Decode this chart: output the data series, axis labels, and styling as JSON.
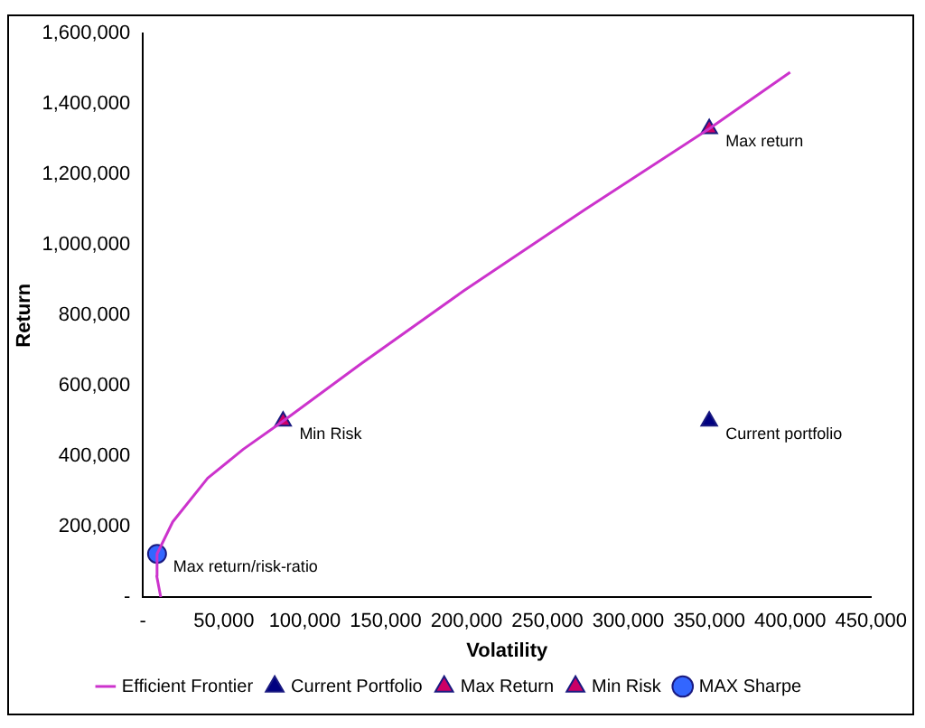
{
  "chart_data": {
    "type": "scatter",
    "xlabel": "Volatility",
    "ylabel": "Return",
    "xlim": [
      0,
      450000
    ],
    "xticks": [
      {
        "value": 0,
        "label": "-"
      },
      {
        "value": 50000,
        "label": "50,000"
      },
      {
        "value": 100000,
        "label": "100,000"
      },
      {
        "value": 150000,
        "label": "150,000"
      },
      {
        "value": 200000,
        "label": "200,000"
      },
      {
        "value": 250000,
        "label": "250,000"
      },
      {
        "value": 300000,
        "label": "300,000"
      },
      {
        "value": 350000,
        "label": "350,000"
      },
      {
        "value": 400000,
        "label": "400,000"
      },
      {
        "value": 450000,
        "label": "450,000"
      }
    ],
    "ylim": [
      0,
      1600000
    ],
    "yticks": [
      {
        "value": 0,
        "label": "-"
      },
      {
        "value": 200000,
        "label": "200,000"
      },
      {
        "value": 400000,
        "label": "400,000"
      },
      {
        "value": 600000,
        "label": "600,000"
      },
      {
        "value": 800000,
        "label": "800,000"
      },
      {
        "value": 1000000,
        "label": "1,000,000"
      },
      {
        "value": 1200000,
        "label": "1,200,000"
      },
      {
        "value": 1400000,
        "label": "1,400,000"
      },
      {
        "value": 1600000,
        "label": "1,600,000"
      }
    ],
    "grid": false,
    "legend": "bottom",
    "series": [
      {
        "name": "Efficient Frontier",
        "type": "line",
        "marker": "none",
        "color": "#cc33cc",
        "x": [
          11000,
          8500,
          8700,
          18400,
          40000,
          62000,
          86600,
          134000,
          198000,
          273000,
          350000,
          400000
        ],
        "values": [
          0,
          60000,
          123000,
          214000,
          338000,
          420000,
          500000,
          660000,
          869000,
          1100000,
          1330000,
          1490000
        ]
      },
      {
        "name": "Current Portfolio",
        "marker": "triangle",
        "color": "#000080",
        "x": [
          350000
        ],
        "values": [
          500000
        ]
      },
      {
        "name": "Max Return",
        "marker": "triangle",
        "color": "#cc0066",
        "x": [
          350000
        ],
        "values": [
          1330000
        ]
      },
      {
        "name": "Min Risk",
        "marker": "triangle",
        "color": "#cc0066",
        "x": [
          86600
        ],
        "values": [
          500000
        ]
      },
      {
        "name": "MAX Sharpe",
        "marker": "circle",
        "color": "#3366ff",
        "x": [
          8700
        ],
        "values": [
          123000
        ]
      }
    ],
    "annotations": [
      {
        "text": "Max return",
        "x": 350000,
        "y": 1330000
      },
      {
        "text": "Min Risk",
        "x": 86600,
        "y": 500000
      },
      {
        "text": "Current portfolio",
        "x": 350000,
        "y": 500000
      },
      {
        "text": "Max return/risk-ratio",
        "x": 8700,
        "y": 123000
      }
    ]
  }
}
